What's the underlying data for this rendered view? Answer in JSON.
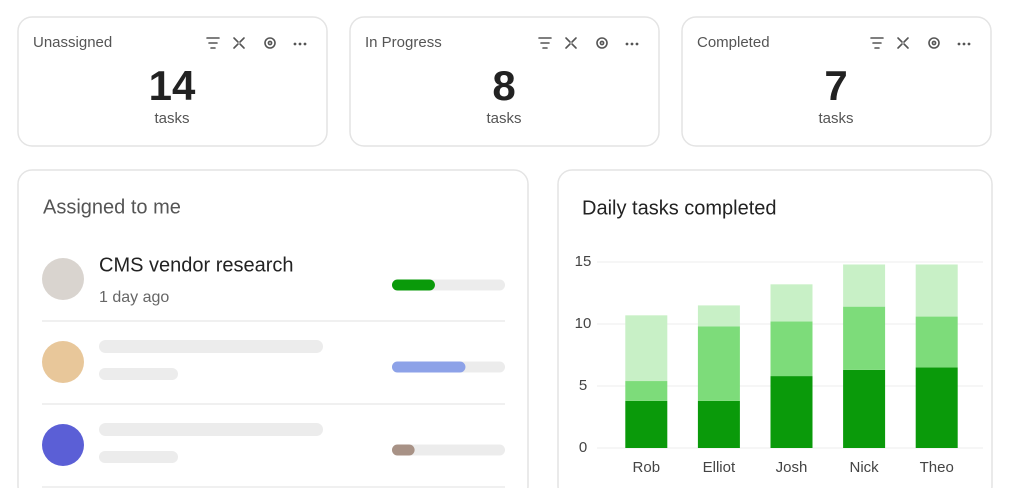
{
  "cards": [
    {
      "title": "Unassigned",
      "count": 14,
      "unit": "tasks"
    },
    {
      "title": "In Progress",
      "count": 8,
      "unit": "tasks"
    },
    {
      "title": "Completed",
      "count": 7,
      "unit": "tasks"
    }
  ],
  "assigned": {
    "title": "Assigned to me",
    "items": [
      {
        "title": "CMS vendor research",
        "time": "1 day ago",
        "progress": 38,
        "color": "#0a9a0a",
        "avatar": "#d9d4cf"
      },
      {
        "progress": 65,
        "color": "#8da2e8",
        "avatar": "#e8c79a"
      },
      {
        "progress": 20,
        "color": "#a89286",
        "avatar": "#5b5fd6"
      }
    ]
  },
  "chart_data": {
    "type": "bar",
    "stacked": true,
    "title": "Daily tasks completed",
    "categories": [
      "Rob",
      "Elliot",
      "Josh",
      "Nick",
      "Theo"
    ],
    "series": [
      {
        "color": "#0a9a0a",
        "values": [
          3.8,
          3.8,
          5.8,
          6.3,
          6.5
        ]
      },
      {
        "color": "#7ddc7a",
        "values": [
          1.6,
          6.0,
          4.4,
          5.1,
          4.1
        ]
      },
      {
        "color": "#c8f0c6",
        "values": [
          5.3,
          1.7,
          3.0,
          3.4,
          4.2
        ]
      }
    ],
    "ylim": [
      0,
      15
    ],
    "yticks": [
      0,
      5,
      10,
      15
    ],
    "grid": true
  }
}
